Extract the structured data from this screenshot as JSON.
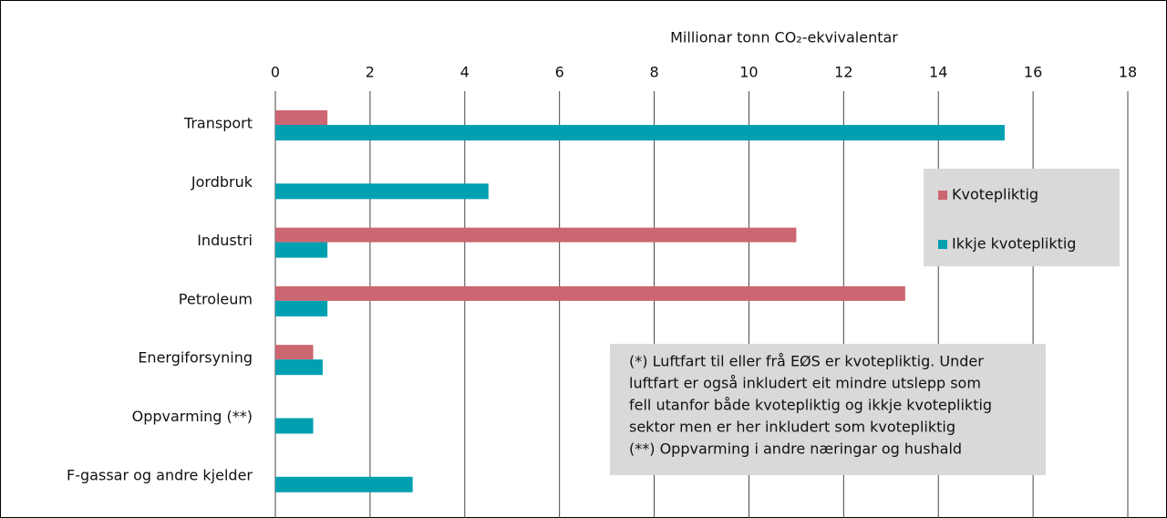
{
  "chart_data": {
    "type": "bar",
    "orientation": "horizontal",
    "x_label": "Millionar tonn CO₂-ekvivalentar",
    "categories": [
      "Transport",
      "Jordbruk",
      "Industri",
      "Petroleum",
      "Energiforsyning",
      "Oppvarming (**)",
      "F-gassar og andre kjelder"
    ],
    "series": [
      {
        "name": "Kvotepliktig",
        "color": "#cc6670",
        "values": [
          1.1,
          null,
          11.0,
          13.3,
          0.8,
          null,
          null
        ]
      },
      {
        "name": "Ikkje kvotepliktig",
        "color": "#00a0b1",
        "values": [
          15.4,
          4.5,
          1.1,
          1.1,
          1.0,
          0.8,
          2.9
        ]
      }
    ],
    "xlim": [
      0,
      18
    ],
    "xticks": [
      0,
      2,
      4,
      6,
      8,
      10,
      12,
      14,
      16,
      18
    ],
    "grid": true,
    "annotation": [
      "(*)  Luftfart til eller frå EØS er kvotepliktig. Under",
      "luftfart  er også inkludert eit mindre utslepp som",
      "fell utanfor både kvotepliktig og ikkje kvotepliktig",
      "sektor men er her inkludert som kvotepliktig",
      "(**) Oppvarming i andre næringar og hushald"
    ]
  }
}
